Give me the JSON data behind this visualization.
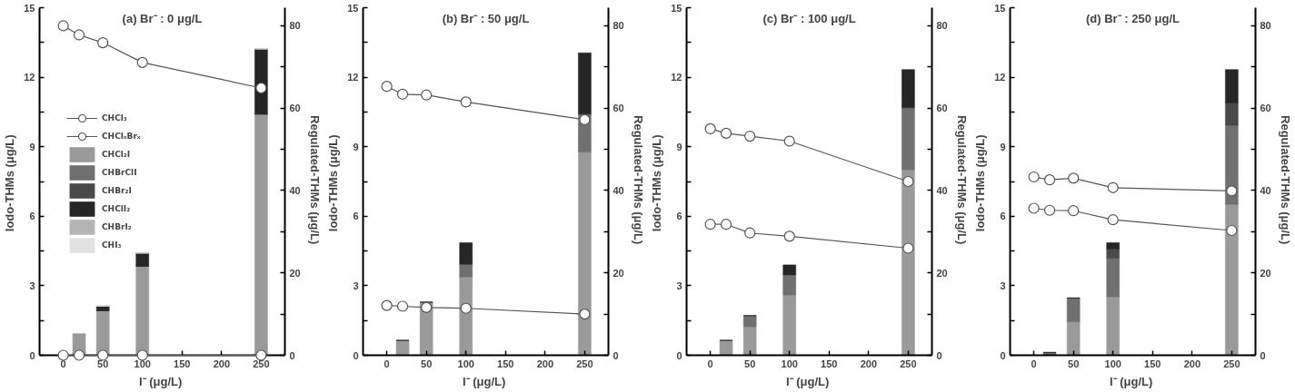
{
  "chart_data": [
    {
      "type": "bar",
      "stacked": true,
      "title": "(a) Br⁻ : 0 μg/L",
      "xlabel": "I⁻  (μg/L)",
      "ylabel": "Iodo-THMs  (μg/L)",
      "y2label": "Regulated-THMs  (μg/L)",
      "x": [
        20,
        50,
        100,
        250
      ],
      "xlim": [
        -30,
        280
      ],
      "xticks": [
        0,
        50,
        100,
        150,
        200,
        250
      ],
      "ylim": [
        0,
        15
      ],
      "yticks": [
        0,
        {
          "value": 1.5,
          "label": null
        },
        3,
        {
          "value": 4.5,
          "label": null
        },
        6,
        {
          "value": 7.5,
          "label": null
        },
        9,
        {
          "value": 10.5,
          "label": null
        },
        12,
        {
          "value": 13.5,
          "label": null
        },
        15
      ],
      "y2lim": [
        0,
        84.4
      ],
      "y2ticks": [
        0,
        {
          "value": 10,
          "label": null
        },
        20,
        {
          "value": 30,
          "label": null
        },
        40,
        {
          "value": 50,
          "label": null
        },
        60,
        {
          "value": 70,
          "label": null
        },
        80
      ],
      "grid": false,
      "legend": "left",
      "marker": "circle",
      "series": [
        {
          "name": "CHCl₃",
          "type": "line",
          "axis": "y2",
          "color": "#555555",
          "x": [
            0,
            20,
            50,
            100,
            250
          ],
          "values": [
            80,
            77.8,
            75.9,
            71.1,
            64.9
          ]
        },
        {
          "name": "CHClₓBrₓ",
          "type": "line",
          "axis": "y2",
          "color": "#555555",
          "x": [
            0,
            20,
            50,
            100,
            250
          ],
          "values": [
            0,
            0,
            0,
            0,
            0
          ]
        },
        {
          "name": "CHCl₂I",
          "color": "#9a9a9a",
          "values": [
            0.93,
            1.92,
            3.84,
            10.41
          ]
        },
        {
          "name": "CHBrClI",
          "color": "#707070",
          "values": [
            0,
            0,
            0,
            0
          ]
        },
        {
          "name": "CHBr₂I",
          "color": "#4a4a4a",
          "values": [
            0,
            0,
            0,
            0
          ]
        },
        {
          "name": "CHClI₂",
          "color": "#262626",
          "values": [
            0,
            0.2,
            0.57,
            2.81
          ]
        },
        {
          "name": "CHBrI₂",
          "color": "#b4b4b4",
          "values": [
            0,
            0,
            0,
            0
          ]
        },
        {
          "name": "CHI₃",
          "color": "#e2e2e2",
          "values": [
            0,
            0,
            0,
            0
          ]
        }
      ]
    },
    {
      "type": "bar",
      "stacked": true,
      "title": "(b) Br⁻ : 50 μg/L",
      "xlabel": "I⁻  (μg/L)",
      "ylabel": "Iodo-THMs  (μg/L)",
      "y2label": "Regulated-THMs  (μg/L)",
      "x": [
        20,
        50,
        100,
        250
      ],
      "xlim": [
        -30,
        280
      ],
      "xticks": [
        0,
        50,
        100,
        150,
        200,
        250
      ],
      "ylim": [
        0,
        15
      ],
      "yticks": [
        0,
        {
          "value": 1.5,
          "label": null
        },
        3,
        {
          "value": 4.5,
          "label": null
        },
        6,
        {
          "value": 7.5,
          "label": null
        },
        9,
        {
          "value": 10.5,
          "label": null
        },
        12,
        {
          "value": 13.5,
          "label": null
        },
        15
      ],
      "y2lim": [
        0,
        84.4
      ],
      "y2ticks": [
        0,
        {
          "value": 10,
          "label": null
        },
        20,
        {
          "value": 30,
          "label": null
        },
        40,
        {
          "value": 50,
          "label": null
        },
        60,
        {
          "value": 70,
          "label": null
        },
        80
      ],
      "grid": false,
      "marker": "circle",
      "series": [
        {
          "type": "line",
          "axis": "y2",
          "color": "#555555",
          "x": [
            0,
            20,
            50,
            100,
            250
          ],
          "values": [
            65.3,
            63.4,
            63.2,
            61.5,
            57.2
          ]
        },
        {
          "type": "line",
          "axis": "y2",
          "color": "#555555",
          "x": [
            0,
            20,
            50,
            100,
            250
          ],
          "values": [
            12.1,
            11.9,
            11.6,
            11.4,
            10.0
          ]
        },
        {
          "color": "#9a9a9a",
          "values": [
            0.64,
            2.29,
            3.38,
            8.77
          ]
        },
        {
          "color": "#707070",
          "values": [
            0,
            0,
            0.55,
            1.64
          ]
        },
        {
          "color": "#262626",
          "values": [
            0,
            0,
            0.93,
            2.64
          ]
        }
      ]
    },
    {
      "type": "bar",
      "stacked": true,
      "title": "(c) Br⁻ : 100 μg/L",
      "xlabel": "I⁻  (μg/L)",
      "ylabel": "Iodo-THMs  (μg/L)",
      "y2label": "Regulated-THMs  (μg/L)",
      "x": [
        20,
        50,
        100,
        250
      ],
      "xlim": [
        -30,
        280
      ],
      "xticks": [
        0,
        50,
        100,
        150,
        200,
        250
      ],
      "ylim": [
        0,
        15
      ],
      "yticks": [
        0,
        {
          "value": 1.5,
          "label": null
        },
        3,
        {
          "value": 4.5,
          "label": null
        },
        6,
        {
          "value": 7.5,
          "label": null
        },
        9,
        {
          "value": 10.5,
          "label": null
        },
        12,
        {
          "value": 13.5,
          "label": null
        },
        15
      ],
      "y2lim": [
        0,
        84.4
      ],
      "y2ticks": [
        0,
        {
          "value": 10,
          "label": null
        },
        20,
        {
          "value": 30,
          "label": null
        },
        40,
        {
          "value": 50,
          "label": null
        },
        60,
        {
          "value": 70,
          "label": null
        },
        80
      ],
      "grid": false,
      "marker": "circle",
      "series": [
        {
          "type": "line",
          "axis": "y2",
          "color": "#555555",
          "x": [
            0,
            20,
            50,
            100,
            250
          ],
          "values": [
            55.0,
            53.9,
            53.2,
            52.0,
            42.2
          ]
        },
        {
          "type": "line",
          "axis": "y2",
          "color": "#555555",
          "x": [
            0,
            20,
            50,
            100,
            250
          ],
          "values": [
            31.8,
            31.8,
            29.7,
            28.9,
            26.0
          ]
        },
        {
          "color": "#9a9a9a",
          "values": [
            0.64,
            1.23,
            2.6,
            8.01
          ]
        },
        {
          "color": "#707070",
          "values": [
            0,
            0.48,
            0.87,
            2.67
          ]
        },
        {
          "color": "#262626",
          "values": [
            0,
            0,
            0.43,
            1.65
          ]
        }
      ]
    },
    {
      "type": "bar",
      "stacked": true,
      "title": "(d) Br⁻ : 250 μg/L",
      "xlabel": "I⁻  (μg/L)",
      "ylabel": "Iodo-THMs  (μg/L)",
      "y2label": "Regulated-THMs  (μg/L)",
      "x": [
        20,
        50,
        100,
        250
      ],
      "xlim": [
        -30,
        280
      ],
      "xticks": [
        0,
        50,
        100,
        150,
        200,
        250
      ],
      "ylim": [
        0,
        15
      ],
      "yticks": [
        0,
        {
          "value": 1.5,
          "label": null
        },
        3,
        {
          "value": 4.5,
          "label": null
        },
        6,
        {
          "value": 7.5,
          "label": null
        },
        9,
        {
          "value": 10.5,
          "label": null
        },
        12,
        {
          "value": 13.5,
          "label": null
        },
        15
      ],
      "y2lim": [
        0,
        84.4
      ],
      "y2ticks": [
        0,
        {
          "value": 10,
          "label": null
        },
        20,
        {
          "value": 30,
          "label": null
        },
        40,
        {
          "value": 50,
          "label": null
        },
        60,
        {
          "value": 70,
          "label": null
        },
        80
      ],
      "grid": false,
      "marker": "circle",
      "series": [
        {
          "type": "line",
          "axis": "y2",
          "color": "#555555",
          "x": [
            0,
            20,
            50,
            100,
            250
          ],
          "values": [
            43.3,
            42.6,
            43.0,
            40.7,
            39.9
          ]
        },
        {
          "type": "line",
          "axis": "y2",
          "color": "#555555",
          "x": [
            0,
            20,
            50,
            100,
            250
          ],
          "values": [
            35.7,
            35.2,
            35.1,
            32.9,
            30.3
          ]
        },
        {
          "color": "#9a9a9a",
          "values": [
            0,
            1.44,
            2.53,
            6.51
          ]
        },
        {
          "color": "#707070",
          "values": [
            0.12,
            1.03,
            1.65,
            3.42
          ]
        },
        {
          "color": "#4a4a4a",
          "values": [
            0,
            0,
            0.41,
            0.96
          ]
        },
        {
          "color": "#262626",
          "values": [
            0,
            0,
            0.27,
            1.44
          ]
        }
      ]
    }
  ]
}
